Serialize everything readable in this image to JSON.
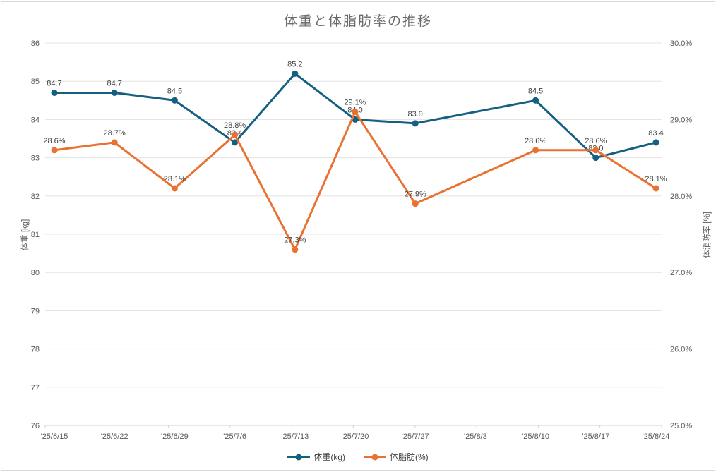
{
  "title": "体重と体脂肪率の推移",
  "chart_data": {
    "type": "line",
    "categories": [
      "'25/6/15",
      "'25/6/22",
      "'25/6/29",
      "'25/7/6",
      "'25/7/13",
      "'25/7/20",
      "'25/7/27",
      "'25/8/3",
      "'25/8/10",
      "'25/8/17",
      "'25/8/24"
    ],
    "series": [
      {
        "name": "体重(kg)",
        "axis": "left",
        "color": "#156082",
        "values": [
          84.7,
          84.7,
          84.5,
          83.4,
          85.2,
          84.0,
          83.9,
          null,
          84.5,
          83.0,
          83.4
        ],
        "labels": [
          "84.7",
          "84.7",
          "84.5",
          "83.4",
          "85.2",
          "84.0",
          "83.9",
          null,
          "84.5",
          "83.0",
          "83.4"
        ]
      },
      {
        "name": "体脂肪(%)",
        "axis": "right",
        "color": "#E97132",
        "values": [
          28.6,
          28.7,
          28.1,
          28.8,
          27.3,
          29.1,
          27.9,
          null,
          28.6,
          28.6,
          28.1
        ],
        "labels": [
          "28.6%",
          "28.7%",
          "28.1%",
          "28.8%",
          "27.3%",
          "29.1%",
          "27.9%",
          null,
          "28.6%",
          "28.6%",
          "28.1%"
        ]
      }
    ],
    "left_axis": {
      "title": "体重 [kg]",
      "min": 76,
      "max": 86,
      "tick_values": [
        86,
        85,
        84,
        83,
        82,
        81,
        80,
        79,
        78,
        77,
        76
      ],
      "tick_labels": [
        "86",
        "85",
        "84",
        "83",
        "82",
        "81",
        "80",
        "79",
        "78",
        "77",
        "76"
      ]
    },
    "right_axis": {
      "title": "体消防率 [%]",
      "min": 25,
      "max": 30,
      "tick_values": [
        30,
        29,
        28,
        27,
        26,
        25
      ],
      "tick_labels": [
        "30.0%",
        "29.0%",
        "28.0%",
        "27.0%",
        "26.0%",
        "25.0%"
      ]
    },
    "grid": true,
    "legend_position": "bottom"
  },
  "colors": {
    "gridline": "#E3E3E3",
    "axis_line": "#D2D2D2",
    "tick_text": "#595959",
    "data_label_text": "#404040",
    "title_text": "#6B6B6B",
    "frame_border": "#D9D9D9"
  }
}
